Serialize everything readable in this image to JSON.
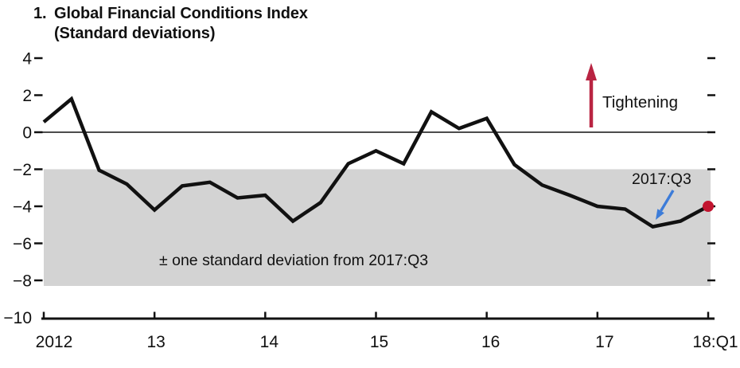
{
  "chart_data": {
    "type": "line",
    "title_number": "1.",
    "title": "Global Financial Conditions Index",
    "subtitle": "(Standard deviations)",
    "x": [
      "2012:Q1",
      "2012:Q2",
      "2012:Q3",
      "2012:Q4",
      "2013:Q1",
      "2013:Q2",
      "2013:Q3",
      "2013:Q4",
      "2014:Q1",
      "2014:Q2",
      "2014:Q3",
      "2014:Q4",
      "2015:Q1",
      "2015:Q2",
      "2015:Q3",
      "2015:Q4",
      "2016:Q1",
      "2016:Q2",
      "2016:Q3",
      "2016:Q4",
      "2017:Q1",
      "2017:Q2",
      "2017:Q3",
      "2017:Q4",
      "2018:Q1"
    ],
    "values": [
      0.55,
      1.8,
      -2.05,
      -2.8,
      -4.2,
      -2.9,
      -2.7,
      -3.55,
      -3.4,
      -4.8,
      -3.8,
      -1.7,
      -1.0,
      -1.7,
      1.1,
      0.2,
      0.75,
      -1.75,
      -2.85,
      -3.4,
      -4.0,
      -4.15,
      -5.1,
      -4.8,
      -4.0
    ],
    "x_ticks": [
      {
        "index": 0,
        "label": "2012"
      },
      {
        "index": 4,
        "label": "13"
      },
      {
        "index": 8,
        "label": "14"
      },
      {
        "index": 12,
        "label": "15"
      },
      {
        "index": 16,
        "label": "16"
      },
      {
        "index": 20,
        "label": "17"
      },
      {
        "index": 24,
        "label": "18:Q1"
      }
    ],
    "y_ticks": [
      4,
      2,
      0,
      -2,
      -4,
      -6,
      -8,
      -10
    ],
    "ylim": [
      -10,
      4.6
    ],
    "zero_line": true,
    "grid": false,
    "band": {
      "top": -2.0,
      "bottom": -8.3,
      "label": "± one standard deviation from 2017:Q3"
    },
    "annotations": {
      "tightening": "Tightening",
      "endpoint_label": "2017:Q3"
    },
    "endpoint": {
      "quarter": "2018:Q1",
      "value": -4.0,
      "marker": "red-dot"
    },
    "colors": {
      "line": "#111111",
      "band": "#d3d3d3",
      "red_arrow": "#b92442",
      "red_dot": "#c2142f",
      "blue_arrow": "#3c7cd9",
      "text": "#111111"
    }
  }
}
